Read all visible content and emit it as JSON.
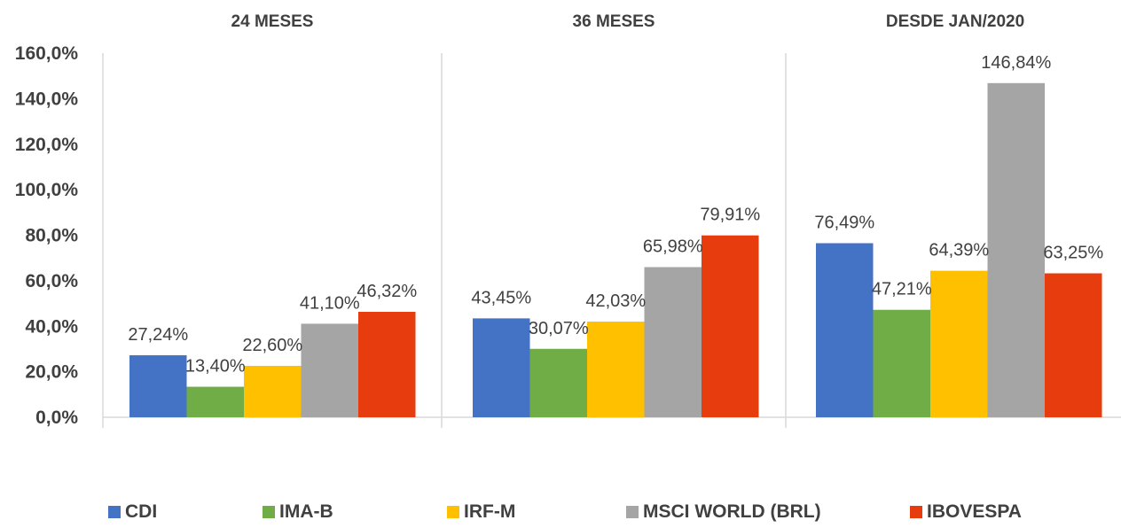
{
  "chart_data": {
    "type": "bar",
    "ylim": [
      0,
      160
    ],
    "yticks": [
      "0,0%",
      "20,0%",
      "40,0%",
      "60,0%",
      "80,0%",
      "100,0%",
      "120,0%",
      "140,0%",
      "160,0%"
    ],
    "panels": [
      {
        "title": "24 MESES",
        "values": [
          27.24,
          13.4,
          22.6,
          41.1,
          46.32
        ],
        "labels": [
          "27,24%",
          "13,40%",
          "22,60%",
          "41,10%",
          "46,32%"
        ]
      },
      {
        "title": "36 MESES",
        "values": [
          43.45,
          30.07,
          42.03,
          65.98,
          79.91
        ],
        "labels": [
          "43,45%",
          "30,07%",
          "42,03%",
          "65,98%",
          "79,91%"
        ]
      },
      {
        "title": "DESDE JAN/2020",
        "values": [
          76.49,
          47.21,
          64.39,
          146.84,
          63.25
        ],
        "labels": [
          "76,49%",
          "47,21%",
          "64,39%",
          "146,84%",
          "63,25%"
        ]
      }
    ],
    "series": [
      {
        "name": "CDI",
        "color": "#4472C4"
      },
      {
        "name": "IMA-B",
        "color": "#70AD47"
      },
      {
        "name": "IRF-M",
        "color": "#FFC000"
      },
      {
        "name": "MSCI WORLD (BRL)",
        "color": "#A5A5A5"
      },
      {
        "name": "IBOVESPA",
        "color": "#E63C0E"
      }
    ],
    "legend_position": "bottom",
    "grid": false
  }
}
